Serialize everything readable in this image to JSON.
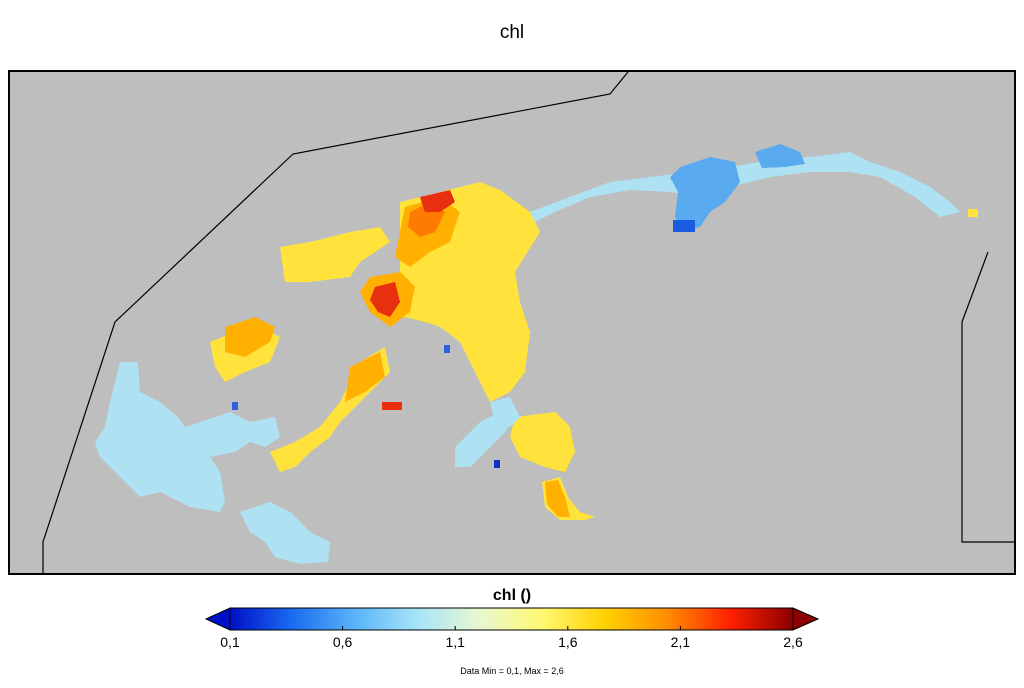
{
  "title": "chl",
  "colorbar": {
    "title": "chl ()",
    "ticks": [
      "0,1",
      "0,6",
      "1,1",
      "1,6",
      "2,1",
      "2,6"
    ],
    "stops": [
      "#0010c8",
      "#1a6cf0",
      "#5ab4f8",
      "#a8e4f8",
      "#e8f8d0",
      "#fff870",
      "#ffd000",
      "#ff8c00",
      "#ff2000",
      "#8b0000"
    ],
    "under_color": "#0010c8",
    "over_color": "#8b0000"
  },
  "data_note": "Data Min = 0,1, Max = 2,6",
  "colors": {
    "land": "#bebebe",
    "coast": "#000000",
    "low": "#aee2f2",
    "blue": "#5aaaf0",
    "yellow": "#ffe23c",
    "orange": "#ffb000",
    "red": "#e83010"
  }
}
